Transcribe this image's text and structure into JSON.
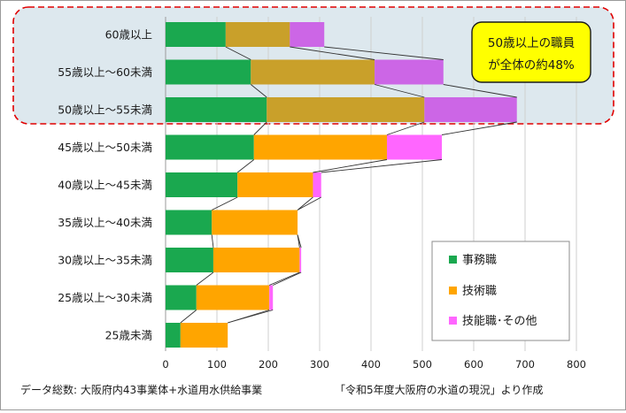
{
  "chart_data": {
    "type": "bar",
    "stacked": true,
    "orientation": "horizontal",
    "categories": [
      "60歳以上",
      "55歳以上〜60未満",
      "50歳以上〜55未満",
      "45歳以上〜50未満",
      "40歳以上〜45未満",
      "35歳以上〜40未満",
      "30歳以上〜35未満",
      "25歳以上〜30未満",
      "25歳未満"
    ],
    "series": [
      {
        "name": "事務職",
        "color": "#1aa84f",
        "values": [
          117,
          166,
          197,
          172,
          140,
          90,
          93,
          60,
          29
        ]
      },
      {
        "name": "技術職",
        "color": "#ffa500",
        "values": [
          125,
          241,
          307,
          259,
          147,
          167,
          168,
          142,
          92
        ]
      },
      {
        "name": "技能職･その他",
        "color": "#ff66ff",
        "values": [
          67,
          134,
          180,
          107,
          16,
          0,
          3,
          7,
          0
        ]
      }
    ],
    "highlighted_categories": [
      "60歳以上",
      "55歳以上〜60未満",
      "50歳以上〜55未満"
    ],
    "highlight_colors": {
      "事務職": "#1aa84f",
      "技術職": "#c9a02a",
      "技能職･その他": "#cc66e6"
    },
    "xlim": [
      0,
      800
    ],
    "xticks": [
      "0",
      "100",
      "200",
      "300",
      "400",
      "500",
      "600",
      "700",
      "800"
    ],
    "grid": "vertical",
    "legend_position": "bottom-right",
    "connector_lines": true,
    "callout": {
      "line1": "50歳以上の職員",
      "line2": "が全体の約48%"
    },
    "footer_left": "データ総数: 大阪府内43事業体+水道用水供給事業",
    "footer_right": "「令和5年度大阪府の水道の現況」より作成"
  }
}
